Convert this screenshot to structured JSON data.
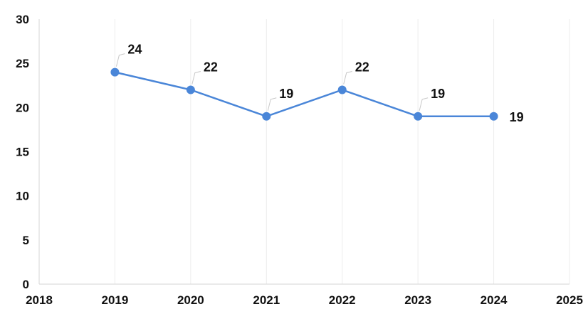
{
  "chart_data": {
    "type": "line",
    "title": "",
    "xlabel": "",
    "ylabel": "",
    "xlim": [
      2018,
      2025
    ],
    "ylim": [
      0,
      30
    ],
    "x_ticks": [
      "2018",
      "2019",
      "2020",
      "2021",
      "2022",
      "2023",
      "2024",
      "2025"
    ],
    "y_ticks": [
      "0",
      "5",
      "10",
      "15",
      "20",
      "25",
      "30"
    ],
    "grid": {
      "vertical": true,
      "horizontal": false
    },
    "legend": "none",
    "series": [
      {
        "color": "#4a86d8",
        "points": [
          {
            "x": 2019,
            "y": 24,
            "label": "24"
          },
          {
            "x": 2020,
            "y": 22,
            "label": "22"
          },
          {
            "x": 2021,
            "y": 19,
            "label": "19"
          },
          {
            "x": 2022,
            "y": 22,
            "label": "22"
          },
          {
            "x": 2023,
            "y": 19,
            "label": "19"
          },
          {
            "x": 2024,
            "y": 19,
            "label": "19"
          }
        ]
      }
    ]
  }
}
